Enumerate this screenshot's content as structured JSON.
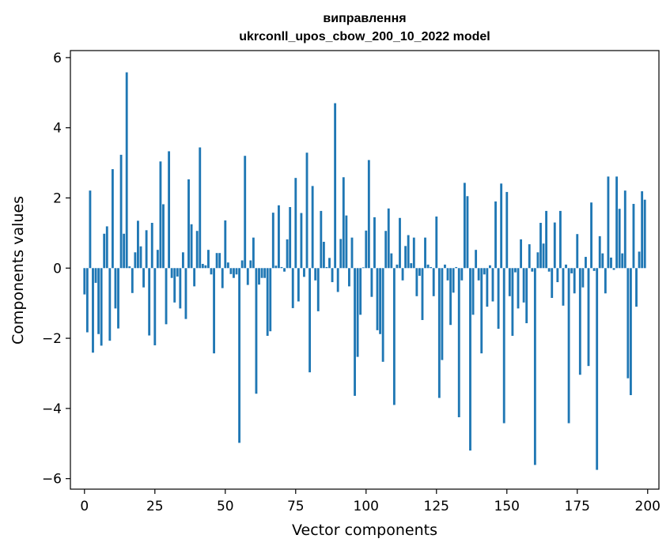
{
  "chart_data": {
    "type": "bar",
    "title_line1": "виправлення",
    "title_line2": "ukrconll_upos_cbow_200_10_2022 model",
    "xlabel": "Vector components",
    "ylabel": "Components values",
    "xlim": [
      -5,
      204
    ],
    "ylim": [
      -6.3,
      6.2
    ],
    "xticks": [
      0,
      25,
      50,
      75,
      100,
      125,
      150,
      175,
      200
    ],
    "xtick_labels": [
      "0",
      "25",
      "50",
      "75",
      "100",
      "125",
      "150",
      "175",
      "200"
    ],
    "yticks": [
      -6,
      -4,
      -2,
      0,
      2,
      4,
      6
    ],
    "ytick_labels": [
      "−6",
      "−4",
      "−2",
      "0",
      "2",
      "4",
      "6"
    ],
    "bar_color": "#1f77b4",
    "values": [
      -0.75,
      -1.83,
      2.21,
      -2.41,
      -0.42,
      -1.88,
      -2.21,
      0.98,
      1.19,
      -2.07,
      2.82,
      -1.15,
      -1.72,
      3.23,
      0.98,
      5.58,
      0.05,
      -0.71,
      0.45,
      1.35,
      0.62,
      -0.55,
      1.08,
      -1.92,
      1.29,
      -2.2,
      0.52,
      3.04,
      1.82,
      -1.6,
      3.33,
      -0.28,
      -0.98,
      -0.24,
      -1.15,
      0.45,
      -1.45,
      2.53,
      1.25,
      -0.52,
      1.06,
      3.44,
      0.12,
      0.08,
      0.52,
      -0.18,
      -2.43,
      0.43,
      0.43,
      -0.57,
      1.36,
      0.16,
      -0.17,
      -0.28,
      -0.18,
      -4.98,
      0.22,
      3.2,
      -0.48,
      0.22,
      0.87,
      -3.58,
      -0.47,
      -0.28,
      -0.28,
      -1.93,
      -1.8,
      1.58,
      0.07,
      1.79,
      0.03,
      -0.1,
      0.82,
      1.74,
      -1.14,
      2.57,
      -0.95,
      1.57,
      -0.25,
      3.29,
      -2.97,
      2.34,
      -0.35,
      -1.23,
      1.63,
      0.75,
      0.03,
      0.29,
      -0.4,
      4.7,
      -0.68,
      0.83,
      2.59,
      1.5,
      -0.52,
      0.87,
      -3.64,
      -2.53,
      -1.33,
      0.02,
      1.07,
      3.08,
      -0.82,
      1.45,
      -1.77,
      -1.88,
      -2.67,
      1.06,
      1.7,
      0.42,
      -3.9,
      0.1,
      1.43,
      -0.35,
      0.63,
      0.94,
      0.14,
      0.87,
      -0.8,
      -0.22,
      -1.48,
      0.87,
      0.1,
      0.03,
      -0.8,
      1.47,
      -3.7,
      -2.62,
      0.1,
      -0.35,
      -1.62,
      -0.7,
      0.03,
      -4.25,
      -0.35,
      2.43,
      2.05,
      -5.2,
      -1.33,
      0.52,
      -0.35,
      -2.43,
      -0.18,
      -1.1,
      0.08,
      -0.95,
      1.9,
      -1.73,
      2.41,
      -4.42,
      2.17,
      -0.8,
      -1.93,
      -0.12,
      -1.15,
      0.82,
      -0.98,
      -1.57,
      0.68,
      -0.1,
      -5.61,
      0.45,
      1.29,
      0.7,
      1.63,
      -0.1,
      -0.85,
      1.3,
      -0.4,
      1.63,
      -1.07,
      0.1,
      -4.42,
      -0.15,
      -0.72,
      0.97,
      -3.04,
      -0.55,
      0.32,
      -2.79,
      1.87,
      -0.08,
      -5.75,
      0.91,
      0.42,
      -0.72,
      2.61,
      0.3,
      -0.05,
      2.61,
      1.69,
      0.42,
      2.21,
      -3.14,
      -3.62,
      1.83,
      -1.1,
      0.47,
      2.19,
      1.95
    ]
  }
}
